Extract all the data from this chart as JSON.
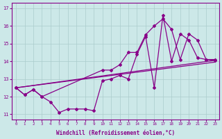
{
  "xlabel": "Windchill (Refroidissement éolien,°C)",
  "xlim": [
    -0.5,
    23.5
  ],
  "ylim": [
    10.7,
    17.3
  ],
  "yticks": [
    11,
    12,
    13,
    14,
    15,
    16,
    17
  ],
  "xticks": [
    0,
    1,
    2,
    3,
    4,
    5,
    6,
    7,
    8,
    9,
    10,
    11,
    12,
    13,
    14,
    15,
    16,
    17,
    18,
    19,
    20,
    21,
    22,
    23
  ],
  "bg_color": "#cce8e8",
  "grid_color": "#aacccc",
  "line_color": "#880088",
  "line1_x": [
    0,
    1,
    2,
    3,
    4,
    5,
    6,
    7,
    8,
    9,
    10,
    11,
    12,
    13,
    14,
    15,
    16,
    17,
    18,
    19,
    20,
    21,
    22,
    23
  ],
  "line1_y": [
    12.5,
    12.1,
    12.4,
    12.0,
    11.7,
    11.1,
    11.3,
    11.3,
    11.3,
    11.2,
    12.9,
    13.0,
    13.2,
    13.0,
    14.4,
    15.4,
    12.5,
    16.6,
    14.0,
    15.55,
    15.2,
    14.2,
    14.1,
    14.1
  ],
  "line2_x": [
    0,
    1,
    2,
    3,
    10,
    11,
    12,
    13,
    14,
    15,
    16,
    17,
    18,
    19,
    20,
    21,
    22,
    23
  ],
  "line2_y": [
    12.5,
    12.1,
    12.4,
    12.0,
    13.5,
    13.5,
    13.8,
    14.5,
    14.5,
    15.5,
    16.0,
    16.4,
    15.8,
    14.1,
    15.55,
    15.2,
    14.1,
    14.05
  ],
  "line3_x": [
    0,
    23
  ],
  "line3_y": [
    12.5,
    13.95
  ],
  "line4_x": [
    0,
    23
  ],
  "line4_y": [
    12.5,
    14.05
  ]
}
